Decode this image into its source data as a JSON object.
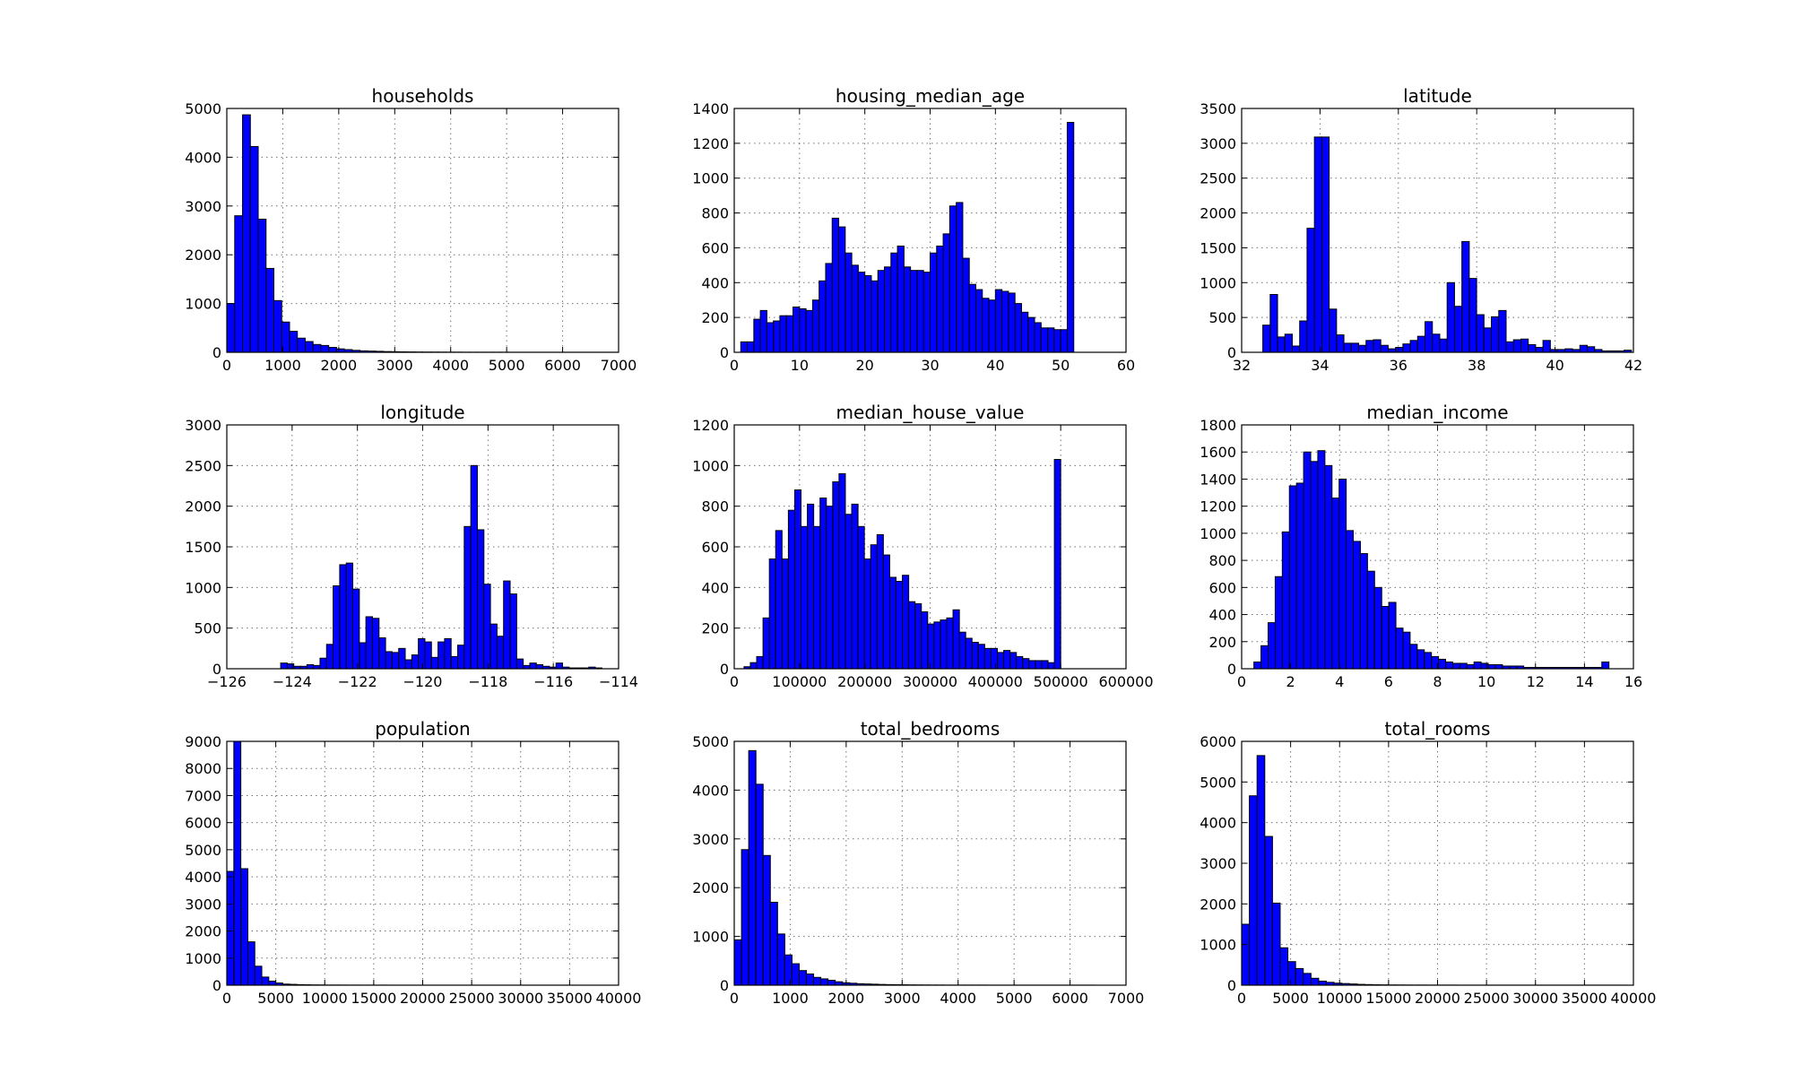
{
  "style": {
    "bar_color": "#0000ff",
    "bar_edge_color": "#000000",
    "background": "#ffffff"
  },
  "chart_data": [
    {
      "type": "bar",
      "title": "households",
      "bin_edges": [
        1,
        7000
      ],
      "values": [
        1000,
        2800,
        4870,
        4220,
        2730,
        1720,
        1060,
        620,
        430,
        290,
        220,
        160,
        140,
        100,
        70,
        55,
        40,
        30,
        25,
        20,
        15,
        12,
        10,
        8,
        6,
        5,
        5,
        4,
        3,
        3,
        2,
        2,
        2,
        2,
        2,
        2,
        1,
        1,
        1,
        1,
        1,
        1,
        1,
        1,
        1,
        1,
        1,
        1,
        1,
        1
      ],
      "xlim": [
        0,
        7000
      ],
      "ylim": [
        0,
        5000
      ],
      "xticks": [
        0,
        1000,
        2000,
        3000,
        4000,
        5000,
        6000,
        7000
      ],
      "xtick_labels": [
        "0",
        "1000",
        "2000",
        "3000",
        "4000",
        "5000",
        "6000",
        "7000"
      ],
      "yticks": [
        0,
        1000,
        2000,
        3000,
        4000,
        5000
      ],
      "ytick_labels": [
        "0",
        "1000",
        "2000",
        "3000",
        "4000",
        "5000"
      ],
      "grid": true
    },
    {
      "type": "bar",
      "title": "housing_median_age",
      "bin_edges": [
        1,
        52
      ],
      "values": [
        60,
        60,
        190,
        240,
        170,
        180,
        210,
        210,
        260,
        250,
        240,
        300,
        410,
        510,
        770,
        720,
        570,
        500,
        460,
        440,
        410,
        470,
        490,
        570,
        610,
        490,
        470,
        470,
        460,
        570,
        610,
        680,
        840,
        860,
        540,
        390,
        360,
        310,
        300,
        360,
        350,
        340,
        280,
        230,
        200,
        170,
        140,
        140,
        130,
        130,
        1320
      ],
      "xlim": [
        0,
        60
      ],
      "ylim": [
        0,
        1400
      ],
      "xticks": [
        0,
        10,
        20,
        30,
        40,
        50,
        60
      ],
      "xtick_labels": [
        "0",
        "10",
        "20",
        "30",
        "40",
        "50",
        "60"
      ],
      "yticks": [
        0,
        200,
        400,
        600,
        800,
        1000,
        1200,
        1400
      ],
      "ytick_labels": [
        "0",
        "200",
        "400",
        "600",
        "800",
        "1000",
        "1200",
        "1400"
      ],
      "grid": true
    },
    {
      "type": "bar",
      "title": "latitude",
      "bin_edges": [
        32.54,
        41.95
      ],
      "values": [
        390,
        830,
        220,
        260,
        90,
        450,
        1780,
        3090,
        3090,
        620,
        250,
        130,
        130,
        100,
        170,
        180,
        100,
        50,
        70,
        120,
        170,
        230,
        440,
        260,
        190,
        1000,
        660,
        1590,
        1060,
        540,
        350,
        510,
        600,
        150,
        180,
        190,
        110,
        70,
        170,
        40,
        40,
        50,
        40,
        100,
        80,
        40,
        20,
        20,
        20,
        30
      ],
      "xlim": [
        32,
        42
      ],
      "ylim": [
        0,
        3500
      ],
      "xticks": [
        32,
        34,
        36,
        38,
        40,
        42
      ],
      "xtick_labels": [
        "32",
        "34",
        "36",
        "38",
        "40",
        "42"
      ],
      "yticks": [
        0,
        500,
        1000,
        1500,
        2000,
        2500,
        3000,
        3500
      ],
      "ytick_labels": [
        "0",
        "500",
        "1000",
        "1500",
        "2000",
        "2500",
        "3000",
        "3500"
      ],
      "grid": true
    },
    {
      "type": "bar",
      "title": "longitude",
      "bin_edges": [
        -124.35,
        -114.31
      ],
      "values": [
        70,
        60,
        30,
        30,
        50,
        40,
        130,
        300,
        1020,
        1280,
        1300,
        980,
        320,
        640,
        620,
        380,
        210,
        200,
        250,
        110,
        170,
        370,
        330,
        140,
        330,
        370,
        150,
        290,
        1750,
        2500,
        1710,
        1040,
        550,
        400,
        1080,
        920,
        120,
        40,
        70,
        50,
        30,
        20,
        70,
        20,
        10,
        10,
        10,
        20,
        10,
        0
      ],
      "xlim": [
        -126,
        -114
      ],
      "ylim": [
        0,
        3000
      ],
      "xticks": [
        -126,
        -124,
        -122,
        -120,
        -118,
        -116,
        -114
      ],
      "xtick_labels": [
        "−126",
        "−124",
        "−122",
        "−120",
        "−118",
        "−116",
        "−114"
      ],
      "yticks": [
        0,
        500,
        1000,
        1500,
        2000,
        2500,
        3000
      ],
      "ytick_labels": [
        "0",
        "500",
        "1000",
        "1500",
        "2000",
        "2500",
        "3000"
      ],
      "grid": true
    },
    {
      "type": "bar",
      "title": "median_house_value",
      "bin_edges": [
        15000,
        500001
      ],
      "values": [
        10,
        30,
        60,
        250,
        540,
        680,
        540,
        780,
        880,
        700,
        810,
        700,
        840,
        800,
        920,
        960,
        760,
        810,
        700,
        540,
        610,
        660,
        560,
        450,
        430,
        460,
        330,
        320,
        280,
        220,
        230,
        240,
        250,
        290,
        180,
        150,
        130,
        120,
        100,
        100,
        80,
        90,
        80,
        60,
        50,
        40,
        40,
        40,
        30,
        1030
      ],
      "xlim": [
        0,
        600000
      ],
      "ylim": [
        0,
        1200
      ],
      "xticks": [
        0,
        100000,
        200000,
        300000,
        400000,
        500000,
        600000
      ],
      "xtick_labels": [
        "0",
        "100000",
        "200000",
        "300000",
        "400000",
        "500000",
        "600000"
      ],
      "yticks": [
        0,
        200,
        400,
        600,
        800,
        1000,
        1200
      ],
      "ytick_labels": [
        "0",
        "200",
        "400",
        "600",
        "800",
        "1000",
        "1200"
      ],
      "grid": true
    },
    {
      "type": "bar",
      "title": "median_income",
      "bin_edges": [
        0.5,
        15.0
      ],
      "values": [
        50,
        170,
        340,
        680,
        1010,
        1350,
        1370,
        1600,
        1530,
        1610,
        1500,
        1260,
        1400,
        1020,
        940,
        850,
        720,
        600,
        460,
        490,
        300,
        270,
        180,
        140,
        120,
        90,
        70,
        50,
        40,
        40,
        30,
        50,
        40,
        30,
        30,
        20,
        20,
        20,
        10,
        10,
        10,
        10,
        10,
        10,
        10,
        10,
        10,
        10,
        10,
        50
      ],
      "xlim": [
        0,
        16
      ],
      "ylim": [
        0,
        1800
      ],
      "xticks": [
        0,
        2,
        4,
        6,
        8,
        10,
        12,
        14,
        16
      ],
      "xtick_labels": [
        "0",
        "2",
        "4",
        "6",
        "8",
        "10",
        "12",
        "14",
        "16"
      ],
      "yticks": [
        0,
        200,
        400,
        600,
        800,
        1000,
        1200,
        1400,
        1600,
        1800
      ],
      "ytick_labels": [
        "0",
        "200",
        "400",
        "600",
        "800",
        "1000",
        "1200",
        "1400",
        "1600",
        "1800"
      ],
      "grid": true
    },
    {
      "type": "bar",
      "title": "population",
      "bin_edges": [
        3,
        35682
      ],
      "values": [
        4200,
        9000,
        4300,
        1600,
        700,
        300,
        150,
        80,
        40,
        30,
        20,
        15,
        10,
        8,
        5,
        5,
        4,
        3,
        3,
        2,
        2,
        2,
        2,
        1,
        1,
        1,
        1,
        1,
        1,
        1,
        1,
        1,
        1,
        1,
        1,
        1,
        1,
        1,
        1,
        1,
        1,
        1,
        1,
        1,
        1,
        1,
        1,
        1,
        1,
        1
      ],
      "xlim": [
        0,
        40000
      ],
      "ylim": [
        0,
        9000
      ],
      "xticks": [
        0,
        5000,
        10000,
        15000,
        20000,
        25000,
        30000,
        35000,
        40000
      ],
      "xtick_labels": [
        "0",
        "5000",
        "10000",
        "15000",
        "20000",
        "25000",
        "30000",
        "35000",
        "40000"
      ],
      "yticks": [
        0,
        1000,
        2000,
        3000,
        4000,
        5000,
        6000,
        7000,
        8000,
        9000
      ],
      "ytick_labels": [
        "0",
        "1000",
        "2000",
        "3000",
        "4000",
        "5000",
        "6000",
        "7000",
        "8000",
        "9000"
      ],
      "grid": true
    },
    {
      "type": "bar",
      "title": "total_bedrooms",
      "bin_edges": [
        1,
        6445
      ],
      "values": [
        930,
        2780,
        4810,
        4120,
        2660,
        1700,
        1050,
        620,
        440,
        300,
        230,
        160,
        130,
        100,
        70,
        50,
        40,
        30,
        25,
        20,
        15,
        12,
        10,
        8,
        6,
        5,
        4,
        3,
        3,
        2,
        2,
        2,
        2,
        2,
        2,
        1,
        1,
        1,
        1,
        1,
        1,
        1,
        1,
        1,
        1,
        1,
        1,
        1,
        1,
        1
      ],
      "xlim": [
        0,
        7000
      ],
      "ylim": [
        0,
        5000
      ],
      "xticks": [
        0,
        1000,
        2000,
        3000,
        4000,
        5000,
        6000,
        7000
      ],
      "xtick_labels": [
        "0",
        "1000",
        "2000",
        "3000",
        "4000",
        "5000",
        "6000",
        "7000"
      ],
      "yticks": [
        0,
        1000,
        2000,
        3000,
        4000,
        5000
      ],
      "ytick_labels": [
        "0",
        "1000",
        "2000",
        "3000",
        "4000",
        "5000"
      ],
      "grid": true
    },
    {
      "type": "bar",
      "title": "total_rooms",
      "bin_edges": [
        2,
        39320
      ],
      "values": [
        1500,
        4660,
        5650,
        3660,
        2020,
        920,
        580,
        410,
        290,
        170,
        100,
        70,
        50,
        40,
        30,
        20,
        15,
        10,
        8,
        6,
        5,
        4,
        3,
        3,
        2,
        2,
        2,
        2,
        1,
        1,
        1,
        1,
        1,
        1,
        1,
        1,
        1,
        1,
        1,
        1,
        1,
        1,
        1,
        1,
        1,
        1,
        1,
        1,
        1,
        1
      ],
      "xlim": [
        0,
        40000
      ],
      "ylim": [
        0,
        6000
      ],
      "xticks": [
        0,
        5000,
        10000,
        15000,
        20000,
        25000,
        30000,
        35000,
        40000
      ],
      "xtick_labels": [
        "0",
        "5000",
        "10000",
        "15000",
        "20000",
        "25000",
        "30000",
        "35000",
        "40000"
      ],
      "yticks": [
        0,
        1000,
        2000,
        3000,
        4000,
        5000,
        6000
      ],
      "ytick_labels": [
        "0",
        "1000",
        "2000",
        "3000",
        "4000",
        "5000",
        "6000"
      ],
      "grid": true
    }
  ]
}
